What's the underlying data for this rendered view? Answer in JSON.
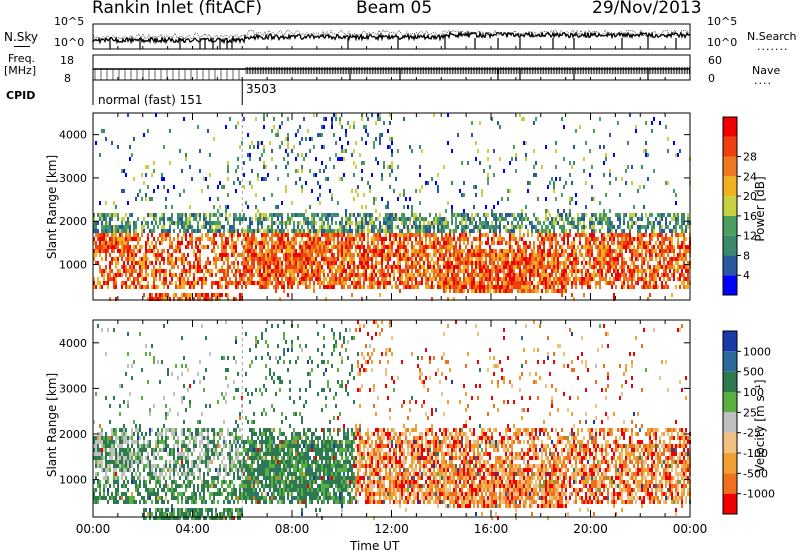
{
  "header": {
    "site": "Rankin Inlet (fitACF)",
    "beam": "Beam 05",
    "date": "29/Nov/2013"
  },
  "noise_panel": {
    "left_label": "N.Sky",
    "right_label": "N.Search",
    "right_dots": ".......",
    "left_ticks": [
      "10^5",
      "10^0"
    ],
    "right_ticks": [
      "10^5",
      "10^0"
    ]
  },
  "freq_panel": {
    "left_label_1": "Freq.",
    "left_label_2": "[MHz]",
    "right_label": "Nave",
    "right_dots": "....",
    "left_ticks": [
      "18",
      "8"
    ],
    "right_ticks": [
      "60",
      "0"
    ]
  },
  "cpid_panel": {
    "label": "CPID",
    "segments": [
      {
        "label": "normal (fast) 151",
        "start_hour": 0.0,
        "end_hour": 6.0
      },
      {
        "label": "3503",
        "start_hour": 6.0,
        "end_hour": 24.0
      }
    ]
  },
  "colors": {
    "power": [
      "#0000ff",
      "#2a58a0",
      "#3a8a6a",
      "#4aa060",
      "#c8d040",
      "#f0b020",
      "#f07820",
      "#f04010",
      "#f00000"
    ],
    "velocity": [
      "#1a3aaa",
      "#2a6a9a",
      "#2d7a50",
      "#5ab040",
      "#c0c0c0",
      "#f0c080",
      "#f0a030",
      "#f07020",
      "#f00000"
    ]
  },
  "chart_data": [
    {
      "type": "heatmap",
      "name": "power",
      "xlabel": "Time UT",
      "ylabel": "Slant Range [km]",
      "x_ticks": [
        "00:00",
        "04:00",
        "08:00",
        "12:00",
        "16:00",
        "20:00",
        "00:00"
      ],
      "x_range_hours": [
        0,
        24
      ],
      "ylim": [
        180,
        4500
      ],
      "y_ticks": [
        1000,
        2000,
        3000,
        4000
      ],
      "colorbar_label": "Power [dB]",
      "colorbar_ticks": [
        "4",
        "8",
        "12",
        "16",
        "20",
        "24",
        "28"
      ],
      "colorbar_range": [
        0,
        30
      ]
    },
    {
      "type": "heatmap",
      "name": "velocity",
      "xlabel": "Time UT",
      "ylabel": "Slant Range [km]",
      "x_ticks": [
        "00:00",
        "04:00",
        "08:00",
        "12:00",
        "16:00",
        "20:00",
        "00:00"
      ],
      "x_range_hours": [
        0,
        24
      ],
      "ylim": [
        180,
        4500
      ],
      "y_ticks": [
        1000,
        2000,
        3000,
        4000
      ],
      "colorbar_label": "Velocity [m s⁻¹]",
      "colorbar_ticks": [
        "1000",
        "500",
        "100",
        "25",
        "-25",
        "-100",
        "-500",
        "-1000"
      ]
    }
  ]
}
